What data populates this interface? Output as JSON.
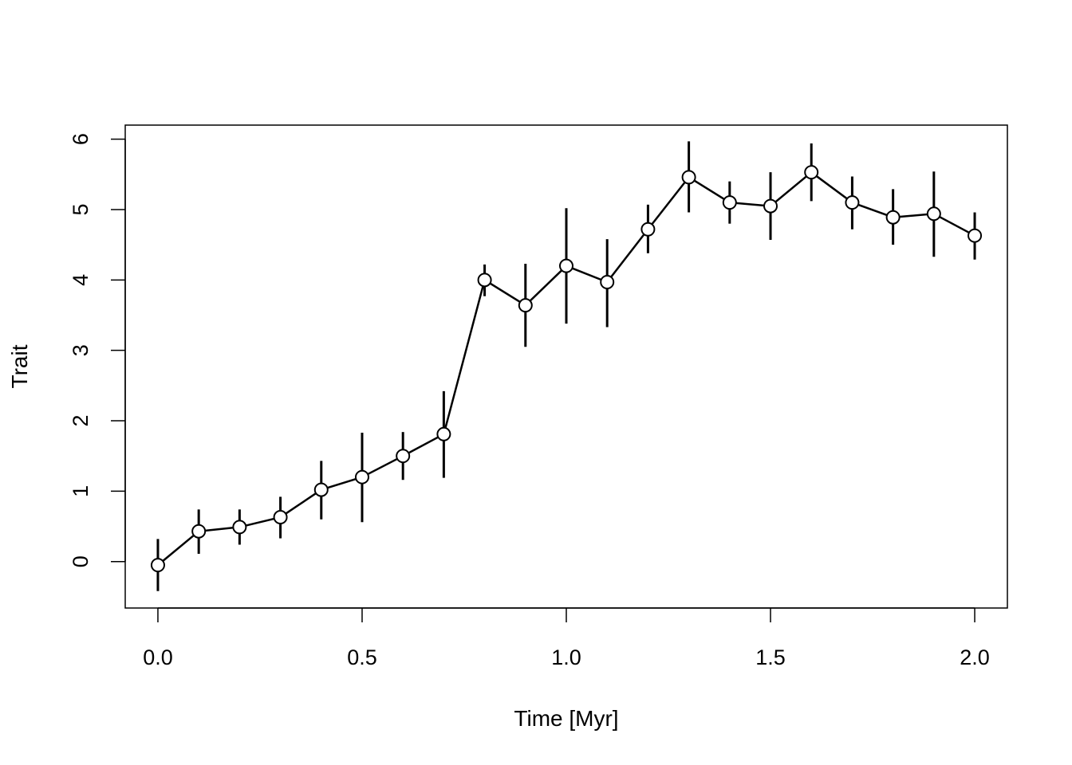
{
  "chart_data": {
    "type": "line",
    "title": "",
    "xlabel": "Time [Myr]",
    "ylabel": "Trait",
    "xlim": [
      -0.08,
      2.08
    ],
    "ylim": [
      -0.66,
      6.2
    ],
    "xticks": [
      0.0,
      0.5,
      1.0,
      1.5,
      2.0
    ],
    "xtick_labels": [
      "0.0",
      "0.5",
      "1.0",
      "1.5",
      "2.0"
    ],
    "yticks": [
      0,
      1,
      2,
      3,
      4,
      5,
      6
    ],
    "ytick_labels": [
      "0",
      "1",
      "2",
      "3",
      "4",
      "5",
      "6"
    ],
    "grid": false,
    "legend": "none",
    "colors": {
      "line": "#000000",
      "marker_fill": "#ffffff",
      "marker_edge": "#000000"
    },
    "series": [
      {
        "x": [
          0.0,
          0.1,
          0.2,
          0.3,
          0.4,
          0.5,
          0.6,
          0.7,
          0.8,
          0.9,
          1.0,
          1.1,
          1.2,
          1.3,
          1.4,
          1.5,
          1.6,
          1.7,
          1.8,
          1.9,
          2.0
        ],
        "y": [
          -0.05,
          0.43,
          0.49,
          0.63,
          1.02,
          1.2,
          1.5,
          1.81,
          4.0,
          3.64,
          4.2,
          3.97,
          4.72,
          5.46,
          5.1,
          5.05,
          5.53,
          5.1,
          4.89,
          4.94,
          4.63
        ],
        "y_lower": [
          -0.42,
          0.11,
          0.24,
          0.33,
          0.6,
          0.56,
          1.16,
          1.19,
          3.77,
          3.05,
          3.38,
          3.33,
          4.38,
          4.96,
          4.8,
          4.57,
          5.12,
          4.72,
          4.5,
          4.33,
          4.29
        ],
        "y_upper": [
          0.32,
          0.74,
          0.74,
          0.92,
          1.43,
          1.83,
          1.84,
          2.42,
          4.22,
          4.23,
          5.02,
          4.58,
          5.07,
          5.97,
          5.4,
          5.53,
          5.94,
          5.47,
          5.29,
          5.54,
          4.96
        ]
      }
    ]
  }
}
